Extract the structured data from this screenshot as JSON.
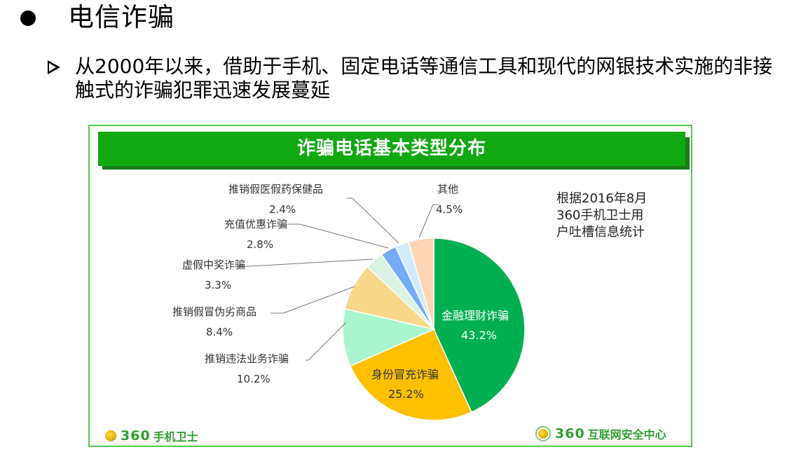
{
  "slide": {
    "heading": "电信诈骗",
    "subpoint": "从2000年以来，借助于手机、固定电话等通信工具和现代的网银技术实施的非接触式的诈骗犯罪迅速发展蔓延"
  },
  "figure": {
    "banner_title": "诈骗电话基本类型分布",
    "note_lines": [
      "根据2016年8月",
      "360手机卫士用",
      "户吐槽信息统计"
    ],
    "logo_left": {
      "num": "360",
      "text": "手机卫士"
    },
    "logo_right": {
      "num": "360",
      "text": "互联网安全中心"
    },
    "labels": {
      "finance": {
        "name": "金融理财诈骗",
        "pct": "43.2%"
      },
      "identity": {
        "name": "身份冒充诈骗",
        "pct": "25.2%"
      },
      "illegal": {
        "name": "推销违法业务诈骗",
        "pct": "10.2%"
      },
      "counterfeit": {
        "name": "推销假冒伪劣商品",
        "pct": "8.4%"
      },
      "prize": {
        "name": "虚假中奖诈骗",
        "pct": "3.3%"
      },
      "recharge": {
        "name": "充值优惠诈骗",
        "pct": "2.8%"
      },
      "medicine": {
        "name": "推销假医假药保健品",
        "pct": "2.4%"
      },
      "other": {
        "name": "其他",
        "pct": "4.5%"
      }
    }
  },
  "chart_data": {
    "type": "pie",
    "title": "诈骗电话基本类型分布",
    "categories": [
      "金融理财诈骗",
      "身份冒充诈骗",
      "推销违法业务诈骗",
      "推销假冒伪劣商品",
      "虚假中奖诈骗",
      "充值优惠诈骗",
      "推销假医假药保健品",
      "其他"
    ],
    "values": [
      43.2,
      25.2,
      10.2,
      8.4,
      3.3,
      2.8,
      2.4,
      4.5
    ],
    "colors": [
      "#00b050",
      "#ffc000",
      "#a9f5cf",
      "#f8d88a",
      "#dcf2e2",
      "#74acf6",
      "#d2ebfc",
      "#fdd5b4"
    ],
    "start_angle": "12 o'clock, clockwise",
    "annotation": "根据2016年8月360手机卫士用户吐槽信息统计",
    "unit": "%"
  }
}
